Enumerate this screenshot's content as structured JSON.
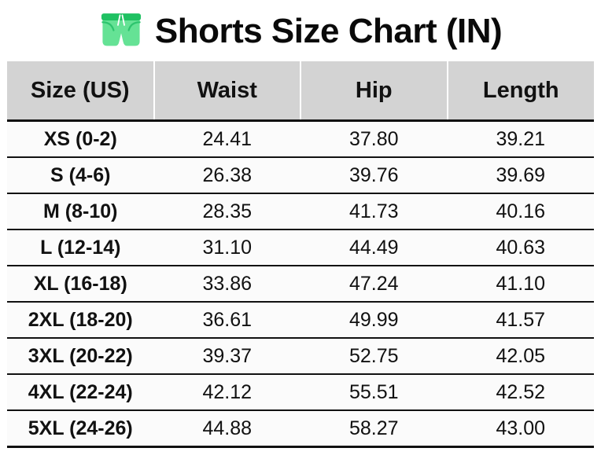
{
  "title": {
    "icon": "shorts-icon",
    "text": "Shorts Size Chart (IN)"
  },
  "colors": {
    "header_bg": "#d3d3d3",
    "row_bg": "#fbfbfb",
    "border": "#111111",
    "title_text": "#0a0a0a",
    "shorts_body": "#65e295",
    "shorts_waistband": "#1fc162",
    "shorts_pocket": "#2dc46e",
    "drawstring": "#ffffff"
  },
  "chart_data": {
    "type": "table",
    "title": "Shorts Size Chart (IN)",
    "unit": "IN",
    "columns": [
      "Size (US)",
      "Waist",
      "Hip",
      "Length"
    ],
    "rows": [
      [
        "XS (0-2)",
        "24.41",
        "37.80",
        "39.21"
      ],
      [
        "S (4-6)",
        "26.38",
        "39.76",
        "39.69"
      ],
      [
        "M (8-10)",
        "28.35",
        "41.73",
        "40.16"
      ],
      [
        "L (12-14)",
        "31.10",
        "44.49",
        "40.63"
      ],
      [
        "XL (16-18)",
        "33.86",
        "47.24",
        "41.10"
      ],
      [
        "2XL (18-20)",
        "36.61",
        "49.99",
        "41.57"
      ],
      [
        "3XL (20-22)",
        "39.37",
        "52.75",
        "42.05"
      ],
      [
        "4XL (22-24)",
        "42.12",
        "55.51",
        "42.52"
      ],
      [
        "5XL (24-26)",
        "44.88",
        "58.27",
        "43.00"
      ]
    ],
    "layout": {
      "header_background": "#d3d3d3",
      "gridlines": "horizontal-only",
      "column_alignment": "center"
    }
  }
}
